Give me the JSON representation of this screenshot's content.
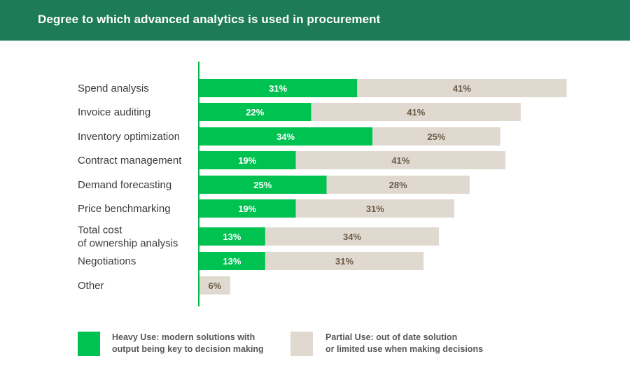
{
  "header": {
    "title": "Degree to which advanced analytics is used in procurement"
  },
  "colors": {
    "header_bg": "#1e7b57",
    "heavy": "#00c250",
    "partial": "#e0d9d0",
    "axis": "#00b84a",
    "category_text": "#3c3c3c",
    "partial_label": "#6b5a45"
  },
  "chart_data": {
    "type": "bar",
    "orientation": "horizontal",
    "stacked": true,
    "value_format": "{v}%",
    "categories": [
      [
        "Spend analysis"
      ],
      [
        "Invoice auditing"
      ],
      [
        "Inventory optimization"
      ],
      [
        "Contract management"
      ],
      [
        "Demand forecasting"
      ],
      [
        "Price benchmarking"
      ],
      [
        "Total cost",
        "of ownership analysis"
      ],
      [
        "Negotiations"
      ],
      [
        "Other"
      ]
    ],
    "series": [
      {
        "name": "Heavy Use",
        "values": [
          31,
          22,
          34,
          19,
          25,
          19,
          13,
          13,
          null
        ]
      },
      {
        "name": "Partial Use",
        "values": [
          41,
          41,
          25,
          41,
          28,
          31,
          34,
          31,
          6
        ]
      }
    ],
    "legend": {
      "placement": "bottom",
      "items": [
        {
          "lines": [
            "Heavy Use: modern solutions with",
            "output being key to decision making"
          ]
        },
        {
          "lines": [
            "Partial Use: out of date solution",
            "or limited use when making decisions"
          ]
        }
      ]
    },
    "grid": false
  }
}
